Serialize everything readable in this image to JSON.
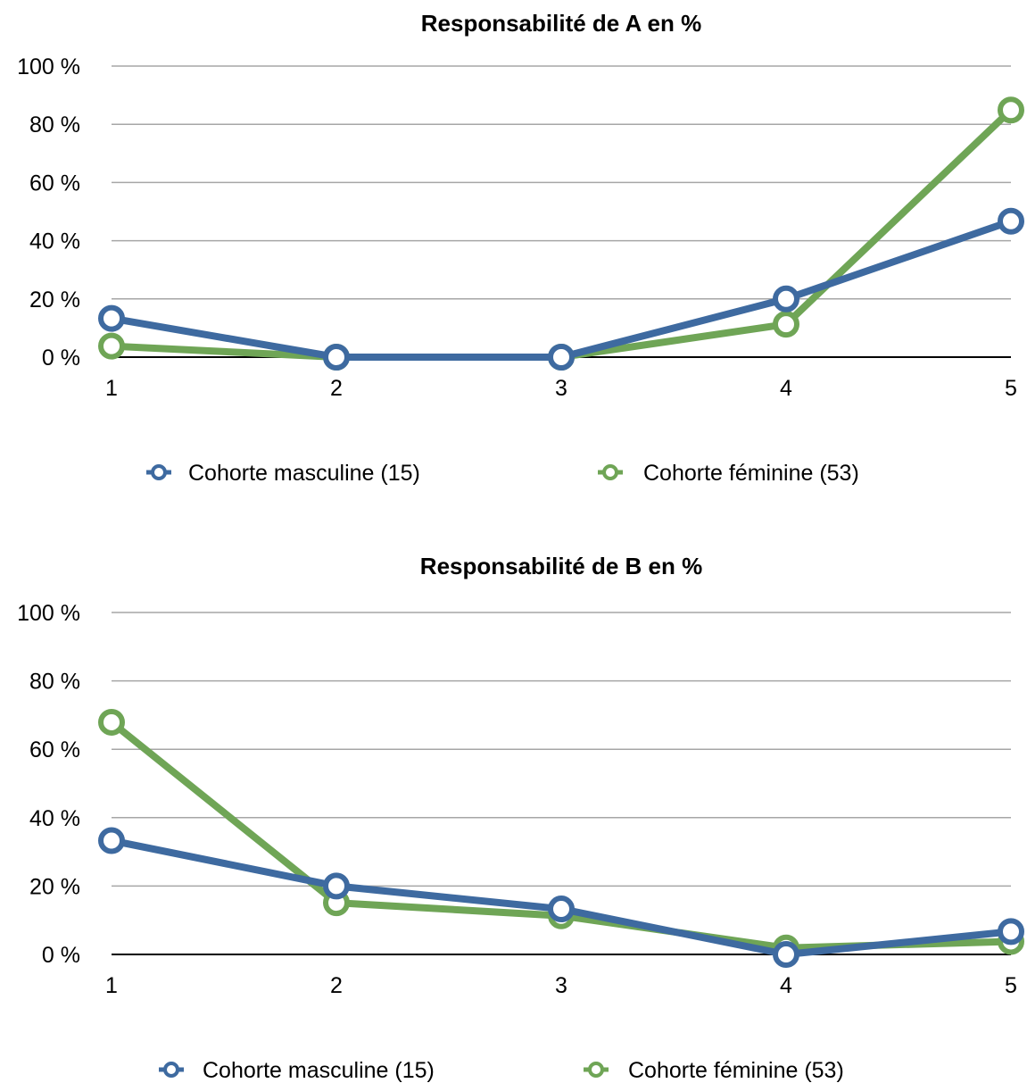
{
  "chart_data": [
    {
      "type": "line",
      "title": "Responsabilité de A en %",
      "categories": [
        "1",
        "2",
        "3",
        "4",
        "5"
      ],
      "ylim": [
        0,
        100
      ],
      "yticks": [
        "0 %",
        "20 %",
        "40 %",
        "60 %",
        "80 %",
        "100 %"
      ],
      "ytick_values": [
        0,
        20,
        40,
        60,
        80,
        100
      ],
      "grid": true,
      "legend": "bottom",
      "series": [
        {
          "name": "Cohorte masculine (15)",
          "color": "#3e6aa0",
          "values": [
            13.3,
            0,
            0,
            20,
            46.7
          ]
        },
        {
          "name": "Cohorte féminine (53)",
          "color": "#6fa556",
          "values": [
            3.8,
            0,
            0,
            11.3,
            84.9
          ]
        }
      ]
    },
    {
      "type": "line",
      "title": "Responsabilité de B en %",
      "categories": [
        "1",
        "2",
        "3",
        "4",
        "5"
      ],
      "ylim": [
        0,
        100
      ],
      "yticks": [
        "0 %",
        "20 %",
        "40 %",
        "60 %",
        "80 %",
        "100 %"
      ],
      "ytick_values": [
        0,
        20,
        40,
        60,
        80,
        100
      ],
      "grid": true,
      "legend": "bottom",
      "series": [
        {
          "name": "Cohorte masculine (15)",
          "color": "#3e6aa0",
          "values": [
            33.3,
            20,
            13.3,
            0,
            6.7
          ]
        },
        {
          "name": "Cohorte féminine (53)",
          "color": "#6fa556",
          "values": [
            67.9,
            15.1,
            11.3,
            1.9,
            3.8
          ]
        }
      ]
    }
  ]
}
